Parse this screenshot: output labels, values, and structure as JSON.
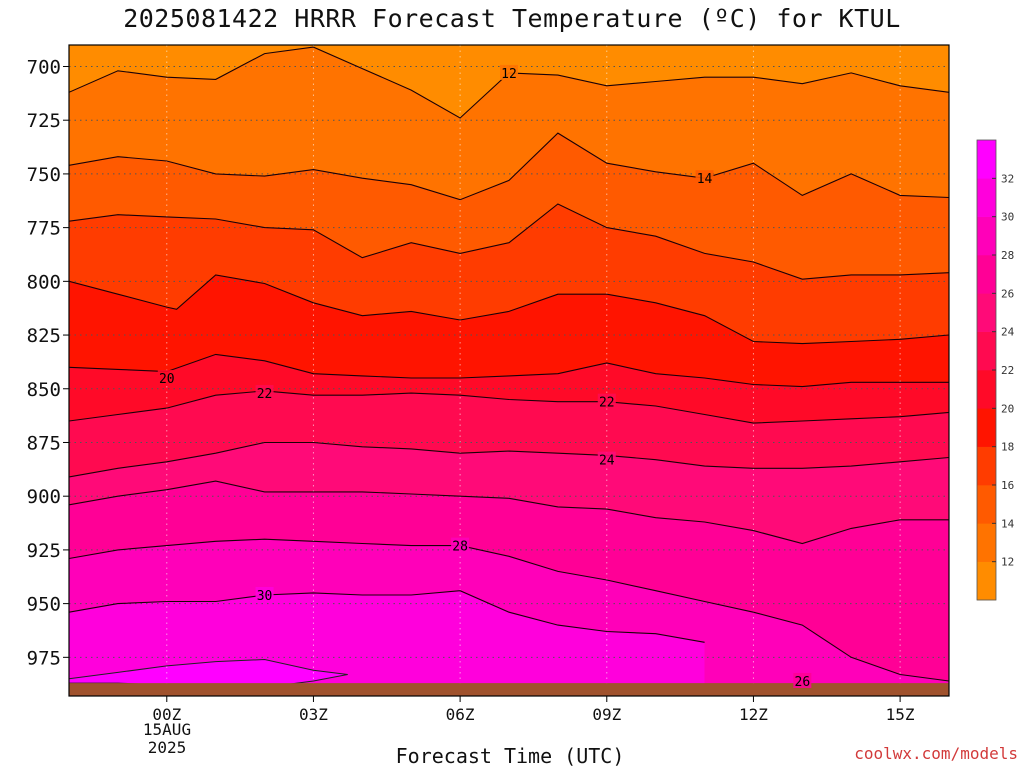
{
  "title": "2025081422 HRRR Forecast Temperature (ºC) for KTUL",
  "x_axis_label": "Forecast Time (UTC)",
  "credit": "coolwx.com/models",
  "date_label": {
    "line1": "15AUG",
    "line2": "2025"
  },
  "colorbar": {
    "bins": [
      {
        "lo": 10,
        "hi": 12,
        "color": "#FF8C00"
      },
      {
        "lo": 12,
        "hi": 14,
        "color": "#FF7300"
      },
      {
        "lo": 14,
        "hi": 16,
        "color": "#FF5A00"
      },
      {
        "lo": 16,
        "hi": 18,
        "color": "#FF3C00"
      },
      {
        "lo": 18,
        "hi": 20,
        "color": "#FF1400"
      },
      {
        "lo": 20,
        "hi": 22,
        "color": "#FF0A28"
      },
      {
        "lo": 22,
        "hi": 24,
        "color": "#FF0A50"
      },
      {
        "lo": 24,
        "hi": 26,
        "color": "#FF0A78"
      },
      {
        "lo": 26,
        "hi": 28,
        "color": "#FF0096"
      },
      {
        "lo": 28,
        "hi": 30,
        "color": "#FF00B9"
      },
      {
        "lo": 30,
        "hi": 32,
        "color": "#FF00DC"
      },
      {
        "lo": 32,
        "hi": 34,
        "color": "#FF00FF"
      }
    ],
    "tick_labels": [
      "12",
      "14",
      "16",
      "18",
      "20",
      "22",
      "24",
      "26",
      "28",
      "30",
      "32"
    ]
  },
  "chart_data": {
    "type": "contour",
    "title": "2025081422 HRRR Forecast Temperature (ºC) for KTUL",
    "xlabel": "Forecast Time (UTC)",
    "ylabel": "",
    "x_unit": "hours relative to 00Z 15AUG 2025",
    "x_range": [
      -2,
      16
    ],
    "y_unit": "hPa",
    "y_range": [
      690,
      993
    ],
    "y_scale": "linear, inverted",
    "x_ticks": [
      {
        "value": 0,
        "label": "00Z"
      },
      {
        "value": 3,
        "label": "03Z"
      },
      {
        "value": 6,
        "label": "06Z"
      },
      {
        "value": 9,
        "label": "09Z"
      },
      {
        "value": 12,
        "label": "12Z"
      },
      {
        "value": 15,
        "label": "15Z"
      }
    ],
    "y_ticks": [
      700,
      725,
      750,
      775,
      800,
      825,
      850,
      875,
      900,
      925,
      950,
      975
    ],
    "grid": "dotted",
    "contour_interval": 2,
    "contour_labels": [
      {
        "text": "12",
        "x": 7,
        "y": 703
      },
      {
        "text": "14",
        "x": 11,
        "y": 752
      },
      {
        "text": "20",
        "x": 0,
        "y": 845
      },
      {
        "text": "22",
        "x": 2,
        "y": 852
      },
      {
        "text": "22",
        "x": 9,
        "y": 856
      },
      {
        "text": "24",
        "x": 9,
        "y": 883
      },
      {
        "text": "28",
        "x": 6,
        "y": 923
      },
      {
        "text": "30",
        "x": 2,
        "y": 946
      },
      {
        "text": "26",
        "x": 13,
        "y": 986
      }
    ],
    "isotherms": [
      {
        "value": 12,
        "x": [
          -2,
          -1,
          0,
          1,
          2,
          3,
          4,
          5,
          6,
          7,
          8,
          9,
          10,
          11,
          12,
          13,
          14,
          15,
          16
        ],
        "y": [
          712,
          702,
          705,
          706,
          694,
          691,
          701,
          711,
          724,
          703,
          704,
          709,
          707,
          705,
          705,
          708,
          703,
          709,
          712
        ]
      },
      {
        "value": 14,
        "x": [
          -2,
          -1,
          0,
          1,
          2,
          3,
          4,
          5,
          6,
          7,
          8,
          9,
          10,
          11,
          12,
          13,
          14,
          15,
          16
        ],
        "y": [
          746,
          742,
          744,
          750,
          751,
          748,
          752,
          755,
          762,
          753,
          731,
          745,
          749,
          752,
          745,
          760,
          750,
          760,
          761
        ]
      },
      {
        "value": 16,
        "x": [
          -2,
          -1,
          0,
          1,
          2,
          3,
          4,
          5,
          6,
          7,
          8,
          9,
          10,
          11,
          12,
          13,
          14,
          15,
          16
        ],
        "y": [
          772,
          769,
          770,
          771,
          775,
          776,
          789,
          782,
          787,
          782,
          764,
          775,
          779,
          787,
          791,
          799,
          797,
          797,
          796
        ]
      },
      {
        "value": 18,
        "x": [
          -2,
          -1,
          0,
          0.2,
          1,
          2,
          3,
          4,
          5,
          6,
          7,
          8,
          9,
          10,
          11,
          12,
          13,
          14,
          15,
          16
        ],
        "y": [
          800,
          806,
          812,
          813,
          797,
          801,
          810,
          816,
          814,
          818,
          814,
          806,
          806,
          810,
          816,
          828,
          829,
          828,
          827,
          825
        ]
      },
      {
        "value": 20,
        "x": [
          -2,
          -1,
          0,
          1,
          2,
          3,
          4,
          5,
          6,
          7,
          8,
          9,
          10,
          11,
          12,
          13,
          14,
          15,
          16
        ],
        "y": [
          840,
          841,
          842,
          834,
          837,
          843,
          844,
          845,
          845,
          844,
          843,
          838,
          843,
          845,
          848,
          849,
          847,
          847,
          847
        ]
      },
      {
        "value": 22,
        "x": [
          -2,
          -1,
          0,
          1,
          2,
          3,
          4,
          5,
          6,
          7,
          8,
          9,
          10,
          11,
          12,
          13,
          14,
          15,
          16
        ],
        "y": [
          865,
          862,
          859,
          853,
          851,
          853,
          853,
          852,
          853,
          855,
          856,
          856,
          858,
          862,
          866,
          865,
          864,
          863,
          861
        ]
      },
      {
        "value": 24,
        "x": [
          -2,
          -1,
          0,
          1,
          2,
          3,
          4,
          5,
          6,
          7,
          8,
          9,
          10,
          11,
          12,
          13,
          14,
          15,
          16
        ],
        "y": [
          891,
          887,
          884,
          880,
          875,
          875,
          877,
          878,
          880,
          879,
          880,
          881,
          883,
          886,
          887,
          887,
          886,
          884,
          882
        ]
      },
      {
        "value": 26,
        "x": [
          -2,
          -1,
          0,
          1,
          2,
          3,
          4,
          5,
          6,
          7,
          8,
          9,
          10,
          11,
          12,
          13,
          14,
          15,
          16
        ],
        "y": [
          904,
          900,
          897,
          893,
          898,
          898,
          898,
          899,
          900,
          901,
          905,
          906,
          910,
          912,
          916,
          922,
          915,
          911,
          911
        ]
      },
      {
        "value": 28,
        "x": [
          -2,
          -1,
          0,
          1,
          2,
          3,
          4,
          5,
          6,
          7,
          8,
          9,
          10,
          11,
          12,
          13,
          14,
          15,
          16
        ],
        "y": [
          929,
          925,
          923,
          921,
          920,
          921,
          922,
          923,
          923,
          928,
          935,
          939,
          944,
          949,
          954,
          960,
          975,
          983,
          986
        ]
      },
      {
        "value": 30,
        "x": [
          -2,
          -1,
          0,
          1,
          2,
          3,
          4,
          5,
          6,
          7,
          8,
          9,
          10,
          11
        ],
        "y": [
          954,
          950,
          949,
          949,
          946,
          945,
          946,
          946,
          944,
          954,
          960,
          963,
          964,
          968
        ]
      }
    ],
    "warm_core_region": {
      "label": "32",
      "x": [
        -2,
        -1,
        0,
        1,
        2,
        3,
        3.7,
        3,
        2,
        1,
        0,
        -1,
        -2
      ],
      "y": [
        985,
        982,
        979,
        977,
        976,
        981,
        983,
        986,
        989,
        989,
        988,
        987,
        987
      ]
    },
    "terrain_surface_hpa": 987
  }
}
